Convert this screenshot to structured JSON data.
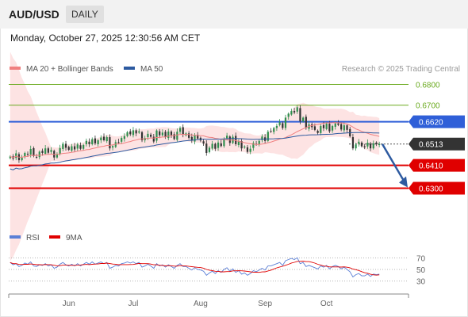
{
  "header": {
    "symbol": "AUD/USD",
    "timeframe": "DAILY",
    "datetime": "Monday, October 27, 2025 12:30:56 AM CET"
  },
  "legend": {
    "main": [
      {
        "label": "MA 20 + Bollinger Bands",
        "color": "#f08080"
      },
      {
        "label": "MA 50",
        "color": "#2d5aa0"
      }
    ],
    "copyright": "Research © 2025 Trading Central",
    "rsi": [
      {
        "label": "RSI",
        "color": "#5b7fd6"
      },
      {
        "label": "9MA",
        "color": "#e00000"
      }
    ]
  },
  "chart_data": {
    "type": "candlestick",
    "y_range": [
      0.613,
      0.6825
    ],
    "x_ticks": [
      "Jun",
      "Jul",
      "Aug",
      "Sep",
      "Oct"
    ],
    "current_price": "0.6513",
    "levels": [
      {
        "value": "0.6800",
        "kind": "target",
        "color": "#6aaa1e"
      },
      {
        "value": "0.6700",
        "kind": "target",
        "color": "#6aaa1e"
      },
      {
        "value": "0.6620",
        "kind": "pivot",
        "color": "#2f5fd8"
      },
      {
        "value": "0.6410",
        "kind": "support",
        "color": "#e00000"
      },
      {
        "value": "0.6300",
        "kind": "support",
        "color": "#e00000"
      }
    ],
    "series": [
      {
        "name": "MA 20 + Bollinger Bands",
        "color": "#f08080"
      },
      {
        "name": "MA 50",
        "color": "#2d5aa0"
      }
    ],
    "projection": {
      "from": 0.6513,
      "to": 0.63,
      "color": "#2d5aa0"
    },
    "closes": [
      0.6453,
      0.6442,
      0.6468,
      0.6435,
      0.6447,
      0.647,
      0.6462,
      0.6489,
      0.6455,
      0.645,
      0.6476,
      0.647,
      0.6492,
      0.6471,
      0.6484,
      0.6448,
      0.6462,
      0.6493,
      0.6514,
      0.6495,
      0.6485,
      0.6502,
      0.6487,
      0.6511,
      0.649,
      0.6508,
      0.6528,
      0.6512,
      0.6536,
      0.6516,
      0.6531,
      0.6544,
      0.6531,
      0.6546,
      0.6492,
      0.6503,
      0.6522,
      0.652,
      0.6542,
      0.6551,
      0.657,
      0.656,
      0.6579,
      0.6564,
      0.6574,
      0.6531,
      0.6542,
      0.6562,
      0.6548,
      0.6525,
      0.6578,
      0.6555,
      0.6568,
      0.6546,
      0.6573,
      0.6556,
      0.6537,
      0.6572,
      0.659,
      0.6559,
      0.6564,
      0.6543,
      0.6529,
      0.6557,
      0.6539,
      0.653,
      0.6515,
      0.647,
      0.6495,
      0.6514,
      0.649,
      0.652,
      0.6503,
      0.6537,
      0.6553,
      0.6518,
      0.6548,
      0.6512,
      0.6527,
      0.6492,
      0.6501,
      0.6475,
      0.649,
      0.6518,
      0.651,
      0.6528,
      0.6549,
      0.6528,
      0.6572,
      0.6575,
      0.659,
      0.66,
      0.6617,
      0.659,
      0.664,
      0.6659,
      0.6672,
      0.6665,
      0.669,
      0.6622,
      0.664,
      0.659,
      0.6608,
      0.6594,
      0.6581,
      0.6566,
      0.66,
      0.6589,
      0.6611,
      0.6574,
      0.66,
      0.6612,
      0.6605,
      0.6583,
      0.6603,
      0.6581,
      0.655,
      0.6492,
      0.651,
      0.6524,
      0.6502,
      0.6497,
      0.6519,
      0.6492,
      0.6516,
      0.6512,
      0.6513
    ],
    "rsi_ticks": [
      "70",
      "50",
      "30"
    ],
    "rsi": [
      62,
      58,
      60,
      55,
      57,
      61,
      59,
      63,
      56,
      55,
      58,
      57,
      60,
      56,
      58,
      52,
      54,
      59,
      62,
      58,
      56,
      59,
      56,
      60,
      56,
      59,
      62,
      59,
      63,
      59,
      61,
      63,
      60,
      62,
      52,
      54,
      57,
      56,
      60,
      61,
      63,
      61,
      63,
      60,
      62,
      54,
      56,
      59,
      56,
      52,
      60,
      56,
      58,
      54,
      58,
      55,
      52,
      57,
      60,
      55,
      55,
      52,
      49,
      53,
      50,
      49,
      47,
      40,
      44,
      47,
      43,
      48,
      45,
      50,
      53,
      47,
      51,
      45,
      48,
      42,
      44,
      40,
      43,
      48,
      46,
      49,
      52,
      49,
      56,
      56,
      58,
      60,
      62,
      57,
      65,
      67,
      69,
      67,
      70,
      60,
      62,
      55,
      57,
      55,
      53,
      51,
      56,
      54,
      57,
      51,
      55,
      57,
      55,
      51,
      54,
      50,
      46,
      37,
      41,
      43,
      39,
      39,
      42,
      38,
      42,
      41,
      42
    ],
    "rsi_range": [
      20,
      80
    ]
  }
}
